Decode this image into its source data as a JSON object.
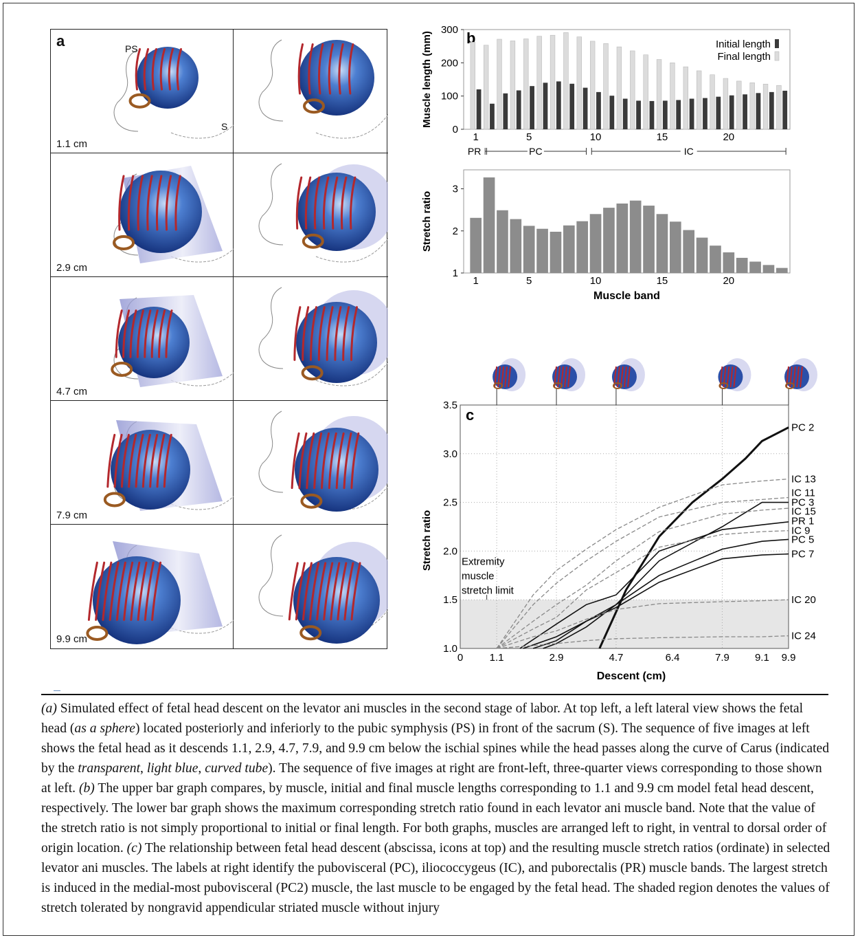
{
  "panel_a": {
    "letter": "a",
    "labels": {
      "pubic_symphysis": "PS",
      "sacrum": "S"
    },
    "descents": [
      "1.1 cm",
      "2.9 cm",
      "4.7 cm",
      "7.9 cm",
      "9.9 cm"
    ]
  },
  "chart_data": [
    {
      "id": "b-top",
      "panel_letter": "b",
      "type": "bar",
      "ylabel": "Muscle length (mm)",
      "ylim": [
        0,
        300
      ],
      "yticks": [
        "0",
        "100",
        "200",
        "300"
      ],
      "xticks": [
        "1",
        "5",
        "10",
        "15",
        "20"
      ],
      "xtick_positions": [
        1,
        5,
        10,
        15,
        20
      ],
      "categories": [
        1,
        2,
        3,
        4,
        5,
        6,
        7,
        8,
        9,
        10,
        11,
        12,
        13,
        14,
        15,
        16,
        17,
        18,
        19,
        20,
        21,
        22,
        23,
        24
      ],
      "groups": [
        {
          "label": "PR",
          "from": 1,
          "to": 1
        },
        {
          "label": "PC",
          "from": 2,
          "to": 9
        },
        {
          "label": "IC",
          "from": 10,
          "to": 24
        }
      ],
      "series": [
        {
          "name": "Initial length",
          "color": "#3a3a3a",
          "values": [
            120,
            77,
            108,
            117,
            130,
            140,
            144,
            137,
            125,
            112,
            101,
            92,
            86,
            85,
            86,
            88,
            92,
            94,
            98,
            102,
            105,
            109,
            112,
            116
          ]
        },
        {
          "name": "Final length",
          "color": "#dcdcdc",
          "values": [
            262,
            253,
            271,
            266,
            272,
            280,
            283,
            291,
            278,
            265,
            258,
            248,
            236,
            224,
            210,
            200,
            188,
            176,
            164,
            153,
            145,
            140,
            136,
            132
          ]
        }
      ]
    },
    {
      "id": "b-bottom",
      "type": "bar",
      "ylabel": "Stretch ratio",
      "xlabel": "Muscle band",
      "ylim": [
        1,
        3.45
      ],
      "yticks": [
        "1",
        "2",
        "3"
      ],
      "xticks": [
        "1",
        "5",
        "10",
        "15",
        "20"
      ],
      "xtick_positions": [
        1,
        5,
        10,
        15,
        20
      ],
      "categories": [
        1,
        2,
        3,
        4,
        5,
        6,
        7,
        8,
        9,
        10,
        11,
        12,
        13,
        14,
        15,
        16,
        17,
        18,
        19,
        20,
        21,
        22,
        23,
        24
      ],
      "series": [
        {
          "name": "",
          "color": "#8c8c8c",
          "values": [
            2.31,
            3.27,
            2.49,
            2.28,
            2.12,
            2.05,
            1.98,
            2.13,
            2.23,
            2.4,
            2.55,
            2.65,
            2.72,
            2.6,
            2.4,
            2.22,
            2.02,
            1.84,
            1.65,
            1.49,
            1.36,
            1.27,
            1.19,
            1.12
          ]
        }
      ]
    },
    {
      "id": "c",
      "panel_letter": "c",
      "type": "line",
      "xlabel": "Descent (cm)",
      "ylabel": "Stretch ratio",
      "xlim": [
        0,
        9.9
      ],
      "ylim": [
        1.0,
        3.5
      ],
      "xticks": [
        "0",
        "1.1",
        "2.9",
        "4.7",
        "6.4",
        "7.9",
        "9.1",
        "9.9"
      ],
      "xtick_values": [
        0,
        1.1,
        2.9,
        4.7,
        6.4,
        7.9,
        9.1,
        9.9
      ],
      "yticks": [
        "1.0",
        "1.5",
        "2.0",
        "2.5",
        "3.0",
        "3.5"
      ],
      "ytick_values": [
        1.0,
        1.5,
        2.0,
        2.5,
        3.0,
        3.5
      ],
      "icon_positions": [
        1.1,
        2.9,
        4.7,
        7.9,
        9.9
      ],
      "shaded_region": {
        "from": 1.0,
        "to": 1.5,
        "label": [
          "Extremity",
          "muscle",
          "stretch limit"
        ]
      },
      "series": [
        {
          "name": "PC 2",
          "style": "bold",
          "x": [
            4.2,
            5.0,
            6.0,
            7.0,
            7.9,
            8.6,
            9.1,
            9.9
          ],
          "y": [
            1.0,
            1.6,
            2.15,
            2.5,
            2.74,
            2.95,
            3.13,
            3.27
          ]
        },
        {
          "name": "IC 13",
          "style": "dashed",
          "x": [
            1.1,
            2.2,
            2.9,
            3.8,
            4.7,
            6.0,
            7.9,
            9.1,
            9.9
          ],
          "y": [
            1.0,
            1.55,
            1.8,
            2.02,
            2.22,
            2.45,
            2.68,
            2.72,
            2.74
          ]
        },
        {
          "name": "IC 11",
          "style": "dashed",
          "x": [
            1.1,
            2.2,
            2.9,
            3.8,
            4.7,
            6.0,
            7.9,
            9.1,
            9.9
          ],
          "y": [
            1.0,
            1.45,
            1.67,
            1.9,
            2.1,
            2.35,
            2.5,
            2.53,
            2.55
          ]
        },
        {
          "name": "PC 3",
          "style": "solid",
          "x": [
            2.5,
            2.9,
            3.8,
            4.7,
            6.0,
            7.9,
            9.1,
            9.9
          ],
          "y": [
            1.0,
            1.05,
            1.22,
            1.45,
            1.9,
            2.25,
            2.5,
            2.5
          ]
        },
        {
          "name": "IC 15",
          "style": "dashed",
          "x": [
            1.1,
            2.2,
            2.9,
            3.8,
            4.7,
            6.0,
            7.9,
            9.1,
            9.9
          ],
          "y": [
            1.0,
            1.28,
            1.45,
            1.65,
            1.9,
            2.2,
            2.38,
            2.42,
            2.44
          ]
        },
        {
          "name": "PR 1",
          "style": "solid",
          "x": [
            1.8,
            2.9,
            3.8,
            4.7,
            6.0,
            7.9,
            9.1,
            9.9
          ],
          "y": [
            1.0,
            1.25,
            1.45,
            1.55,
            2.0,
            2.22,
            2.27,
            2.3
          ]
        },
        {
          "name": "IC 9",
          "style": "dashed",
          "x": [
            1.1,
            2.2,
            2.9,
            3.8,
            4.7,
            6.0,
            7.9,
            9.1,
            9.9
          ],
          "y": [
            1.0,
            1.2,
            1.32,
            1.6,
            1.78,
            2.04,
            2.17,
            2.2,
            2.21
          ]
        },
        {
          "name": "PC 5",
          "style": "solid",
          "x": [
            2.2,
            2.9,
            3.8,
            4.7,
            6.0,
            7.9,
            9.1,
            9.9
          ],
          "y": [
            1.0,
            1.08,
            1.28,
            1.45,
            1.75,
            2.02,
            2.1,
            2.12
          ]
        },
        {
          "name": "PC 7",
          "style": "solid",
          "x": [
            1.9,
            2.9,
            3.8,
            4.7,
            6.0,
            7.9,
            9.1,
            9.9
          ],
          "y": [
            1.0,
            1.12,
            1.28,
            1.42,
            1.68,
            1.92,
            1.96,
            1.97
          ]
        },
        {
          "name": "IC 20",
          "style": "dashed",
          "x": [
            1.1,
            2.2,
            2.9,
            3.8,
            4.7,
            6.0,
            7.9,
            9.1,
            9.9
          ],
          "y": [
            1.0,
            1.12,
            1.18,
            1.3,
            1.4,
            1.46,
            1.48,
            1.49,
            1.5
          ]
        },
        {
          "name": "IC 24",
          "style": "dashed",
          "x": [
            1.1,
            2.2,
            2.9,
            3.8,
            4.7,
            6.0,
            7.9,
            9.1,
            9.9
          ],
          "y": [
            1.0,
            1.03,
            1.05,
            1.08,
            1.1,
            1.11,
            1.12,
            1.12,
            1.13
          ]
        }
      ]
    }
  ],
  "caption": {
    "a_tag": "(a)",
    "a_text_1": " Simulated effect of fetal head descent on the levator ani muscles in the second stage of labor. At top left, a left lateral view shows the fetal head (",
    "a_em_1": "as a sphere",
    "a_text_2": ") located posteriorly and inferiorly to the pubic symphysis (PS) in front of the sacrum (S). The sequence of five images at left shows the fetal head as it descends 1.1, 2.9, 4.7, 7.9, and 9.9 cm below the ischial spines while the head passes along the curve of Carus (indicated by the ",
    "a_em_2": "transparent",
    "a_text_3": ", ",
    "a_em_3": "light blue",
    "a_text_4": ", ",
    "a_em_4": "curved tube",
    "a_text_5": "). The sequence of five images at right are front-left, three-quarter views corresponding to those shown at left. ",
    "b_tag": "(b)",
    "b_text": " The upper bar graph compares, by muscle, initial and final muscle lengths corresponding to 1.1 and 9.9 cm model fetal head descent, respectively. The lower bar graph shows the maximum corresponding stretch ratio found in each levator ani muscle band. Note that the value of the stretch ratio is not simply proportional to initial or final length. For both graphs, muscles are arranged left to right, in ventral to dorsal order of origin location. ",
    "c_tag": "(c)",
    "c_text": " The relationship between fetal head descent (abscissa, icons at top) and the resulting muscle stretch ratios (ordinate) in selected levator ani muscles. The labels at right identify the pubovisceral (PC), iliococcygeus (IC), and puborectalis (PR) muscle bands. The largest stretch is induced in the medial-most pubovisceral (PC2) muscle, the last muscle to be engaged by the fetal head. The shaded region denotes the values of stretch tolerated by nongravid appendicular striated muscle without injury"
  },
  "colors": {
    "sphere": "#2b4fa8",
    "muscle": "#b3282d",
    "tube": "#8a8fd0",
    "ring": "#9a5a22"
  }
}
